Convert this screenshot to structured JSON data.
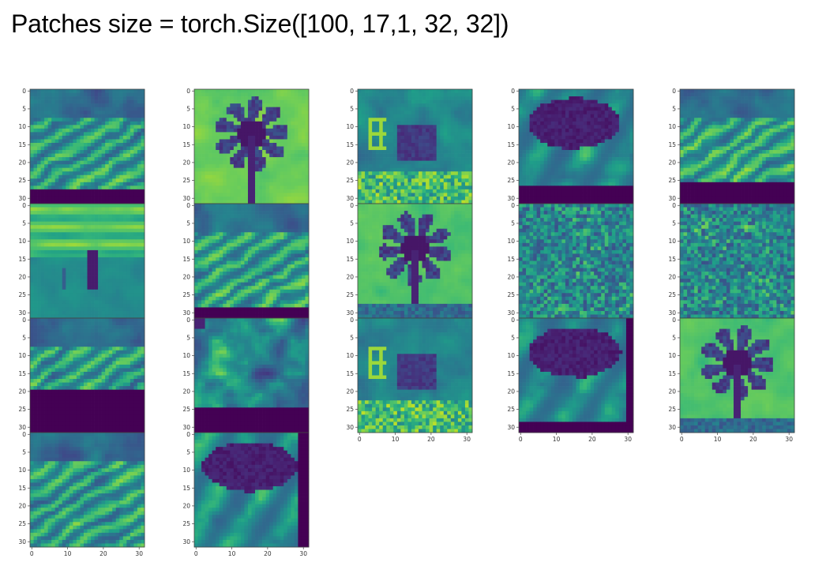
{
  "title": "Patches size = torch.Size([100, 17,1, 32, 32])",
  "colormap": [
    "#440154",
    "#482777",
    "#3e4989",
    "#31688e",
    "#26828e",
    "#1f9e89",
    "#35b779",
    "#6ece58",
    "#b5de2b",
    "#fde725"
  ],
  "chart_data": {
    "type": "heatmap",
    "grid": {
      "columns": 5,
      "rows_in_column": [
        4,
        4,
        3,
        3,
        3
      ]
    },
    "panel_size": [
      32,
      32
    ],
    "yticks": [
      0,
      5,
      10,
      15,
      20,
      25,
      30
    ],
    "xticks": [
      0,
      10,
      20,
      30
    ],
    "xlim": [
      0,
      31
    ],
    "ylim": [
      31,
      0
    ],
    "colormap_name": "viridis"
  }
}
